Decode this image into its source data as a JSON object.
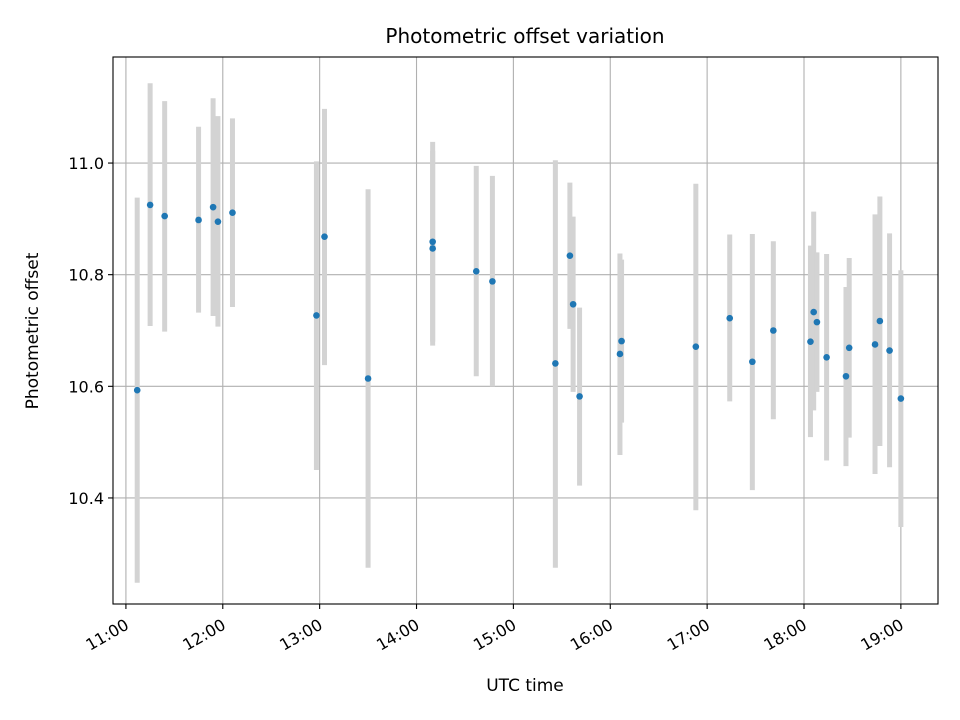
{
  "chart_data": {
    "type": "scatter",
    "title": "Photometric offset variation",
    "xlabel": "UTC time",
    "ylabel": "Photometric offset",
    "xlim": [
      "10:52",
      "19:23"
    ],
    "ylim": [
      10.21,
      11.19
    ],
    "x_ticks": [
      "11:00",
      "12:00",
      "13:00",
      "14:00",
      "15:00",
      "16:00",
      "17:00",
      "18:00",
      "19:00"
    ],
    "y_ticks": [
      "10.4",
      "10.6",
      "10.8",
      "11.0"
    ],
    "grid": true,
    "colors": {
      "point": "#1f77b4",
      "errorbar": "#d3d3d3",
      "grid": "#b0b0b0"
    },
    "points": [
      {
        "x": "11:07",
        "y": 10.593,
        "ylo": 10.248,
        "yhi": 10.938
      },
      {
        "x": "11:15",
        "y": 10.925,
        "ylo": 10.708,
        "yhi": 11.143
      },
      {
        "x": "11:24",
        "y": 10.905,
        "ylo": 10.698,
        "yhi": 11.111
      },
      {
        "x": "11:45",
        "y": 10.898,
        "ylo": 10.732,
        "yhi": 11.065
      },
      {
        "x": "11:54",
        "y": 10.921,
        "ylo": 10.726,
        "yhi": 11.116
      },
      {
        "x": "11:57",
        "y": 10.895,
        "ylo": 10.707,
        "yhi": 11.084
      },
      {
        "x": "12:06",
        "y": 10.911,
        "ylo": 10.742,
        "yhi": 11.08
      },
      {
        "x": "12:58",
        "y": 10.727,
        "ylo": 10.45,
        "yhi": 11.003
      },
      {
        "x": "13:03",
        "y": 10.868,
        "ylo": 10.638,
        "yhi": 11.097
      },
      {
        "x": "13:30",
        "y": 10.614,
        "ylo": 10.275,
        "yhi": 10.953
      },
      {
        "x": "14:10",
        "y": 10.859,
        "ylo": 10.68,
        "yhi": 11.038
      },
      {
        "x": "14:10",
        "y": 10.847,
        "ylo": 10.673,
        "yhi": 11.022
      },
      {
        "x": "14:37",
        "y": 10.806,
        "ylo": 10.618,
        "yhi": 10.995
      },
      {
        "x": "14:47",
        "y": 10.788,
        "ylo": 10.6,
        "yhi": 10.977
      },
      {
        "x": "15:26",
        "y": 10.641,
        "ylo": 10.275,
        "yhi": 11.005
      },
      {
        "x": "15:35",
        "y": 10.834,
        "ylo": 10.703,
        "yhi": 10.965
      },
      {
        "x": "15:37",
        "y": 10.747,
        "ylo": 10.59,
        "yhi": 10.904
      },
      {
        "x": "15:41",
        "y": 10.582,
        "ylo": 10.422,
        "yhi": 10.741
      },
      {
        "x": "16:07",
        "y": 10.681,
        "ylo": 10.535,
        "yhi": 10.827
      },
      {
        "x": "16:06",
        "y": 10.658,
        "ylo": 10.477,
        "yhi": 10.838
      },
      {
        "x": "16:53",
        "y": 10.671,
        "ylo": 10.378,
        "yhi": 10.963
      },
      {
        "x": "17:14",
        "y": 10.722,
        "ylo": 10.573,
        "yhi": 10.872
      },
      {
        "x": "17:28",
        "y": 10.644,
        "ylo": 10.414,
        "yhi": 10.873
      },
      {
        "x": "17:41",
        "y": 10.7,
        "ylo": 10.541,
        "yhi": 10.86
      },
      {
        "x": "18:04",
        "y": 10.68,
        "ylo": 10.509,
        "yhi": 10.852
      },
      {
        "x": "18:06",
        "y": 10.733,
        "ylo": 10.557,
        "yhi": 10.913
      },
      {
        "x": "18:08",
        "y": 10.715,
        "ylo": 10.59,
        "yhi": 10.84
      },
      {
        "x": "18:14",
        "y": 10.652,
        "ylo": 10.467,
        "yhi": 10.837
      },
      {
        "x": "18:26",
        "y": 10.618,
        "ylo": 10.457,
        "yhi": 10.778
      },
      {
        "x": "18:28",
        "y": 10.669,
        "ylo": 10.508,
        "yhi": 10.83
      },
      {
        "x": "18:44",
        "y": 10.675,
        "ylo": 10.443,
        "yhi": 10.908
      },
      {
        "x": "18:47",
        "y": 10.717,
        "ylo": 10.493,
        "yhi": 10.94
      },
      {
        "x": "18:53",
        "y": 10.664,
        "ylo": 10.455,
        "yhi": 10.874
      },
      {
        "x": "19:00",
        "y": 10.578,
        "ylo": 10.348,
        "yhi": 10.808
      }
    ]
  }
}
